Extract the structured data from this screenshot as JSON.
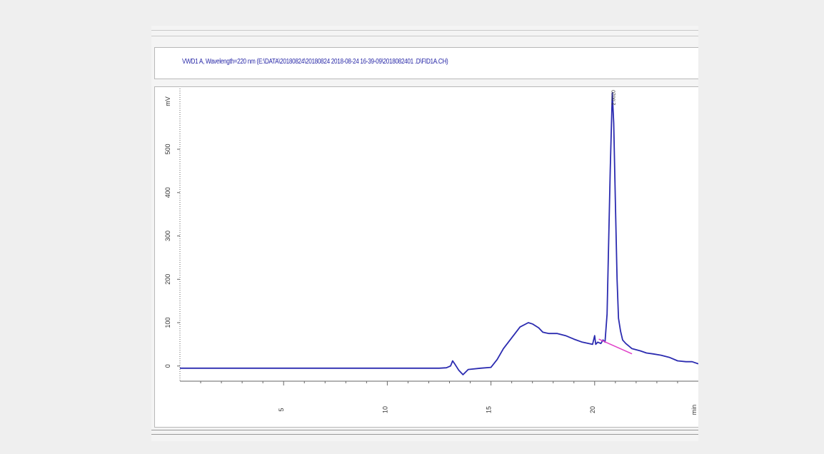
{
  "header": {
    "title": "VWD1 A, Wavelength=220 nm (E:\\DATA\\20180824\\20180824 2018-08-24 16-39-09\\2018082401 .D\\FID1A.CH)"
  },
  "chart_data": {
    "type": "line",
    "title": "",
    "ylabel": "mV",
    "xlabel": "min",
    "xlim": [
      0,
      25
    ],
    "ylim": [
      -35,
      640
    ],
    "xticks": [
      5,
      10,
      15,
      20
    ],
    "xtick_labels": [
      "5",
      "10",
      "15",
      "20"
    ],
    "yticks": [
      0,
      100,
      200,
      300,
      400,
      500
    ],
    "ytick_labels": [
      "0",
      "100",
      "200",
      "300",
      "400",
      "500"
    ],
    "grid": false,
    "colors": {
      "signal": "#2b2bb0",
      "baseline": "#e040c8",
      "axis": "#666666"
    },
    "series": [
      {
        "color": "#2b2bb0",
        "x": [
          0,
          5,
          10,
          12.5,
          12.85,
          13.05,
          13.15,
          13.25,
          13.45,
          13.65,
          13.9,
          14.5,
          15,
          15.3,
          15.6,
          16,
          16.4,
          16.8,
          17.0,
          17.3,
          17.5,
          17.8,
          18.2,
          18.6,
          19.0,
          19.4,
          19.9,
          20.0,
          20.05,
          20.15,
          20.3,
          20.4,
          20.5,
          20.6,
          20.75,
          20.85,
          20.92,
          21.0,
          21.08,
          21.15,
          21.25,
          21.35,
          21.5,
          21.8,
          22.2,
          22.5,
          22.8,
          23.2,
          23.6,
          24.0,
          24.4,
          24.7,
          25.0
        ],
        "y": [
          -5,
          -5,
          -5,
          -5,
          -4,
          0,
          12,
          5,
          -10,
          -20,
          -8,
          -5,
          -3,
          15,
          40,
          65,
          90,
          100,
          97,
          88,
          78,
          75,
          75,
          70,
          62,
          55,
          50,
          70,
          50,
          55,
          52,
          60,
          55,
          120,
          450,
          630,
          560,
          380,
          200,
          110,
          80,
          60,
          52,
          40,
          35,
          30,
          28,
          25,
          20,
          12,
          10,
          10,
          5
        ]
      },
      {
        "color": "#e040c8",
        "x": [
          20.2,
          21.8
        ],
        "y": [
          62,
          28
        ]
      }
    ],
    "annotations": [
      {
        "x": 20.92,
        "y": 630,
        "text": "2.0020"
      }
    ]
  }
}
